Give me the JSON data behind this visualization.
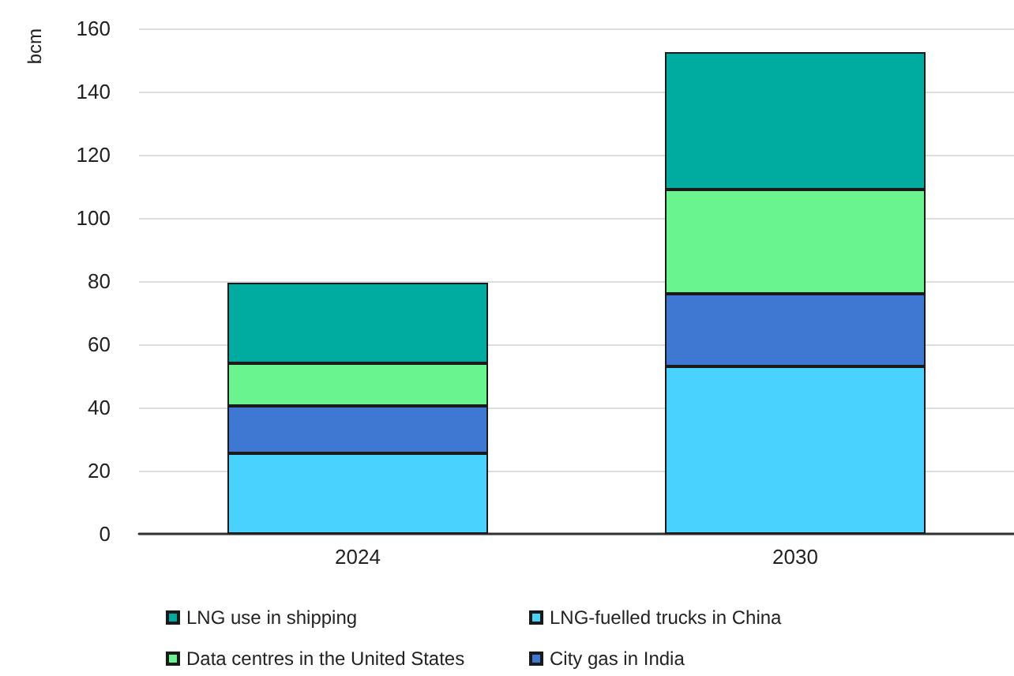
{
  "chart_data": {
    "type": "bar",
    "stacked": true,
    "ylabel": "bcm",
    "categories": [
      "2024",
      "2030"
    ],
    "series": [
      {
        "name": "LNG-fuelled trucks in China",
        "color": "#48d2fd",
        "values": [
          25.5,
          53
        ]
      },
      {
        "name": "City gas in India",
        "color": "#3f78d3",
        "values": [
          15,
          23
        ]
      },
      {
        "name": "Data centres in the United States",
        "color": "#69f490",
        "values": [
          13.5,
          33
        ]
      },
      {
        "name": "LNG use in shipping",
        "color": "#00ac9f",
        "values": [
          25.5,
          43.5
        ]
      }
    ],
    "ylim": [
      0,
      160
    ],
    "yticks": [
      0,
      20,
      40,
      60,
      80,
      100,
      120,
      140,
      160
    ],
    "grid": "y",
    "legend": "bottom"
  }
}
